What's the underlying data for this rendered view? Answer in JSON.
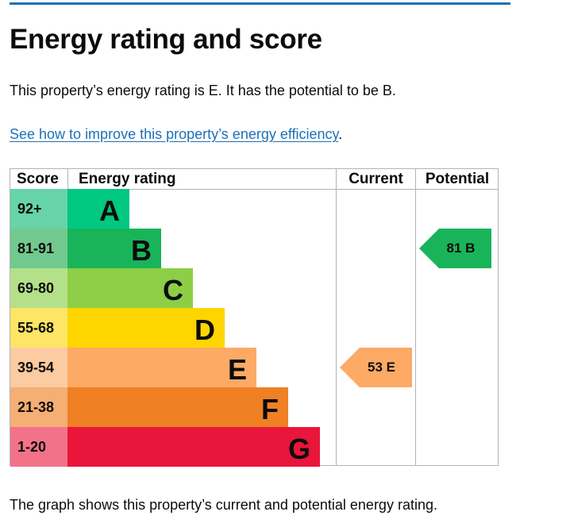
{
  "page": {
    "title": "Energy rating and score",
    "summary": "This property’s energy rating is E. It has the potential to be B.",
    "improve_link": "See how to improve this property’s energy efficiency",
    "improve_suffix": ".",
    "footer": "The graph shows this property’s current and potential energy rating.",
    "accent_color": "#1d70b8"
  },
  "chart_data": {
    "type": "table",
    "headers": {
      "score": "Score",
      "rating": "Energy rating",
      "current": "Current",
      "potential": "Potential"
    },
    "bands": [
      {
        "letter": "A",
        "range": "92+",
        "bar_color": "#00c781",
        "score_color": "#67d3a8"
      },
      {
        "letter": "B",
        "range": "81-91",
        "bar_color": "#19b459",
        "score_color": "#72c98e"
      },
      {
        "letter": "C",
        "range": "69-80",
        "bar_color": "#8dce46",
        "score_color": "#b5e08a"
      },
      {
        "letter": "D",
        "range": "55-68",
        "bar_color": "#ffd500",
        "score_color": "#fde565"
      },
      {
        "letter": "E",
        "range": "39-54",
        "bar_color": "#fcaa65",
        "score_color": "#fdcba1"
      },
      {
        "letter": "F",
        "range": "21-38",
        "bar_color": "#ef8023",
        "score_color": "#f5ae73"
      },
      {
        "letter": "G",
        "range": "1-20",
        "bar_color": "#e9153b",
        "score_color": "#f27389"
      }
    ],
    "current": {
      "score": 53,
      "band": "E",
      "label": "53 E",
      "color": "#fcaa65"
    },
    "potential": {
      "score": 81,
      "band": "B",
      "label": "81 B",
      "color": "#19b459"
    }
  }
}
